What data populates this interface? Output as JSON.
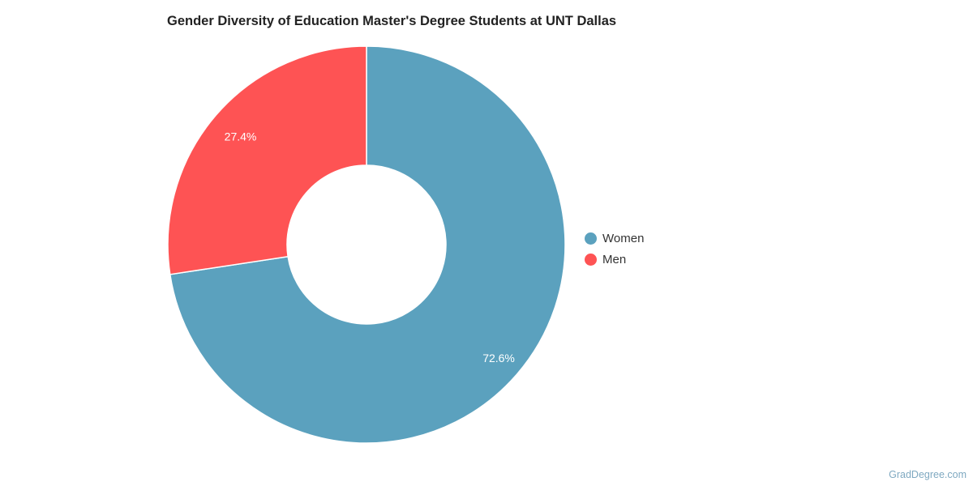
{
  "chart_data": {
    "type": "pie",
    "variant": "donut",
    "title": "Gender Diversity of Education Master's Degree Students at UNT Dallas",
    "categories": [
      "Women",
      "Men"
    ],
    "values": [
      72.6,
      27.4
    ],
    "labels": [
      "72.6%",
      "27.4%"
    ],
    "colors": [
      "#5ba1be",
      "#fe5354"
    ],
    "legend_placement": "right"
  },
  "credit": "GradDegree.com"
}
